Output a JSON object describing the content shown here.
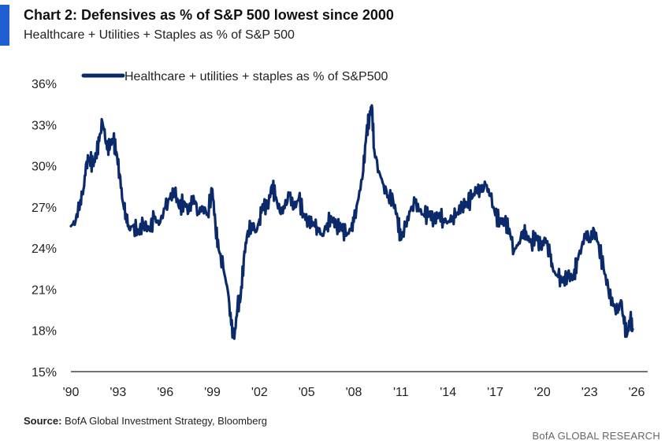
{
  "title": "Chart 2: Defensives as % of S&P 500 lowest since 2000",
  "subtitle": "Healthcare + Utilities + Staples as % of S&P 500",
  "source_label": "Source:",
  "source_text": "BofA Global Investment Strategy, Bloomberg",
  "brand": "BofA GLOBAL RESEARCH",
  "colors": {
    "line": "#0b2a6b",
    "accent": "#1f5fd1"
  },
  "chart_data": {
    "type": "line",
    "title": "Chart 2: Defensives as % of S&P 500 lowest since 2000",
    "subtitle": "Healthcare + Utilities + Staples as % of S&P 500",
    "xlabel": "",
    "ylabel": "",
    "xlim": [
      1990,
      2026
    ],
    "ylim": [
      15,
      36
    ],
    "y_ticks": [
      15,
      18,
      21,
      24,
      27,
      30,
      33,
      36
    ],
    "y_tick_labels": [
      "15%",
      "18%",
      "21%",
      "24%",
      "27%",
      "30%",
      "33%",
      "36%"
    ],
    "x_ticks": [
      1990,
      1993,
      1996,
      1999,
      2002,
      2005,
      2008,
      2011,
      2014,
      2017,
      2020,
      2023,
      2026
    ],
    "x_tick_labels": [
      "'90",
      "'93",
      "'96",
      "'99",
      "'02",
      "'05",
      "'08",
      "'11",
      "'14",
      "'17",
      "'20",
      "'23",
      "'26"
    ],
    "grid": false,
    "legend_position": "top-left",
    "series": [
      {
        "name": "Healthcare + utilities + staples as % of S&P500",
        "points": [
          [
            1990.0,
            25.6
          ],
          [
            1990.3,
            26.0
          ],
          [
            1990.6,
            27.5
          ],
          [
            1990.8,
            28.3
          ],
          [
            1991.0,
            30.3
          ],
          [
            1991.2,
            30.6
          ],
          [
            1991.4,
            30.0
          ],
          [
            1991.6,
            30.8
          ],
          [
            1991.8,
            31.8
          ],
          [
            1992.0,
            33.2
          ],
          [
            1992.1,
            32.6
          ],
          [
            1992.3,
            31.2
          ],
          [
            1992.5,
            31.6
          ],
          [
            1992.7,
            31.9
          ],
          [
            1992.9,
            31.0
          ],
          [
            1993.1,
            29.4
          ],
          [
            1993.3,
            27.4
          ],
          [
            1993.5,
            26.5
          ],
          [
            1993.7,
            25.4
          ],
          [
            1994.0,
            25.7
          ],
          [
            1994.3,
            25.1
          ],
          [
            1994.6,
            25.8
          ],
          [
            1995.0,
            25.3
          ],
          [
            1995.3,
            26.2
          ],
          [
            1995.6,
            25.7
          ],
          [
            1996.0,
            26.9
          ],
          [
            1996.3,
            27.6
          ],
          [
            1996.6,
            28.2
          ],
          [
            1996.9,
            26.9
          ],
          [
            1997.2,
            27.4
          ],
          [
            1997.5,
            26.7
          ],
          [
            1997.8,
            27.8
          ],
          [
            1998.1,
            26.6
          ],
          [
            1998.4,
            27.0
          ],
          [
            1998.7,
            26.5
          ],
          [
            1999.0,
            28.3
          ],
          [
            1999.2,
            25.6
          ],
          [
            1999.4,
            23.9
          ],
          [
            1999.7,
            22.5
          ],
          [
            2000.0,
            20.8
          ],
          [
            2000.2,
            18.4
          ],
          [
            2000.4,
            17.4
          ],
          [
            2000.6,
            19.7
          ],
          [
            2000.8,
            20.4
          ],
          [
            2001.0,
            23.2
          ],
          [
            2001.2,
            24.9
          ],
          [
            2001.5,
            25.8
          ],
          [
            2001.8,
            25.2
          ],
          [
            2002.0,
            26.1
          ],
          [
            2002.2,
            27.2
          ],
          [
            2002.5,
            26.9
          ],
          [
            2002.8,
            28.6
          ],
          [
            2003.0,
            27.8
          ],
          [
            2003.3,
            26.6
          ],
          [
            2003.6,
            26.9
          ],
          [
            2003.9,
            27.9
          ],
          [
            2004.2,
            26.9
          ],
          [
            2004.5,
            27.6
          ],
          [
            2004.8,
            26.5
          ],
          [
            2005.1,
            25.9
          ],
          [
            2005.4,
            25.9
          ],
          [
            2005.7,
            25.5
          ],
          [
            2006.0,
            24.9
          ],
          [
            2006.3,
            25.8
          ],
          [
            2006.6,
            26.2
          ],
          [
            2006.9,
            25.6
          ],
          [
            2007.2,
            25.6
          ],
          [
            2007.5,
            24.9
          ],
          [
            2007.8,
            25.3
          ],
          [
            2008.0,
            25.9
          ],
          [
            2008.3,
            27.6
          ],
          [
            2008.6,
            29.6
          ],
          [
            2008.8,
            32.3
          ],
          [
            2009.0,
            33.6
          ],
          [
            2009.15,
            34.4
          ],
          [
            2009.3,
            31.2
          ],
          [
            2009.6,
            29.6
          ],
          [
            2009.9,
            28.6
          ],
          [
            2010.2,
            27.8
          ],
          [
            2010.5,
            27.5
          ],
          [
            2010.8,
            26.1
          ],
          [
            2011.0,
            24.6
          ],
          [
            2011.3,
            25.6
          ],
          [
            2011.6,
            26.7
          ],
          [
            2011.9,
            27.3
          ],
          [
            2012.2,
            26.7
          ],
          [
            2012.5,
            26.3
          ],
          [
            2012.8,
            26.6
          ],
          [
            2013.1,
            26.0
          ],
          [
            2013.4,
            26.5
          ],
          [
            2013.7,
            26.1
          ],
          [
            2014.0,
            25.9
          ],
          [
            2014.3,
            26.3
          ],
          [
            2014.6,
            26.6
          ],
          [
            2014.9,
            27.1
          ],
          [
            2015.2,
            27.3
          ],
          [
            2015.5,
            27.6
          ],
          [
            2015.8,
            28.3
          ],
          [
            2016.1,
            28.1
          ],
          [
            2016.4,
            28.6
          ],
          [
            2016.7,
            27.8
          ],
          [
            2017.0,
            26.4
          ],
          [
            2017.3,
            26.0
          ],
          [
            2017.6,
            25.9
          ],
          [
            2017.9,
            25.4
          ],
          [
            2018.2,
            23.8
          ],
          [
            2018.5,
            24.4
          ],
          [
            2018.8,
            25.3
          ],
          [
            2019.0,
            24.9
          ],
          [
            2019.3,
            24.4
          ],
          [
            2019.6,
            24.9
          ],
          [
            2019.9,
            24.0
          ],
          [
            2020.2,
            24.7
          ],
          [
            2020.5,
            23.4
          ],
          [
            2020.7,
            22.3
          ],
          [
            2021.0,
            21.9
          ],
          [
            2021.3,
            21.5
          ],
          [
            2021.6,
            22.0
          ],
          [
            2022.0,
            21.8
          ],
          [
            2022.2,
            23.1
          ],
          [
            2022.5,
            24.1
          ],
          [
            2022.8,
            25.2
          ],
          [
            2023.0,
            24.6
          ],
          [
            2023.3,
            25.3
          ],
          [
            2023.6,
            24.2
          ],
          [
            2023.9,
            22.5
          ],
          [
            2024.2,
            21.0
          ],
          [
            2024.5,
            19.8
          ],
          [
            2024.8,
            19.3
          ],
          [
            2025.0,
            20.2
          ],
          [
            2025.2,
            18.5
          ],
          [
            2025.4,
            17.7
          ],
          [
            2025.6,
            18.9
          ],
          [
            2025.75,
            18.1
          ]
        ]
      }
    ]
  }
}
